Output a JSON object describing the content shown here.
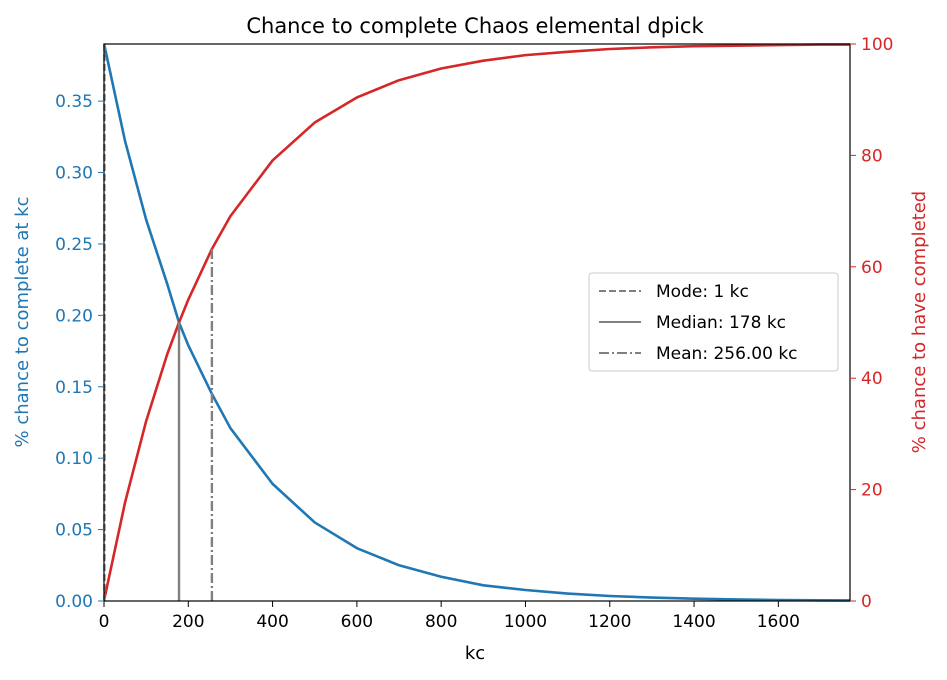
{
  "chart_data": {
    "type": "line",
    "title": "Chance to complete Chaos elemental dpick",
    "xlabel": "kc",
    "ylabel_left": "% chance to complete at kc",
    "ylabel_right": "% chance to have completed",
    "xlim": [
      0,
      1770
    ],
    "ylim_left": [
      0,
      0.39
    ],
    "ylim_right": [
      0,
      100
    ],
    "x_ticks": [
      "0",
      "200",
      "400",
      "600",
      "800",
      "1000",
      "1200",
      "1400",
      "1600"
    ],
    "y_left_ticks": [
      "0.00",
      "0.05",
      "0.10",
      "0.15",
      "0.20",
      "0.25",
      "0.30",
      "0.35"
    ],
    "y_right_ticks": [
      "0",
      "20",
      "40",
      "60",
      "80",
      "100"
    ],
    "colors": {
      "left": "#1f77b4",
      "right": "#d62728",
      "markers": "#808080"
    },
    "series": [
      {
        "axis": "left",
        "x": [
          1,
          50,
          100,
          150,
          178,
          200,
          256,
          300,
          400,
          500,
          600,
          700,
          800,
          900,
          1000,
          1100,
          1200,
          1300,
          1400,
          1500,
          1600,
          1700,
          1770
        ],
        "values": [
          0.389,
          0.322,
          0.267,
          0.222,
          0.195,
          0.179,
          0.145,
          0.121,
          0.082,
          0.055,
          0.037,
          0.025,
          0.017,
          0.011,
          0.0077,
          0.0052,
          0.0035,
          0.0024,
          0.0016,
          0.0011,
          0.0007,
          0.0005,
          0.0004
        ]
      },
      {
        "axis": "right",
        "x": [
          1,
          50,
          100,
          150,
          178,
          200,
          256,
          300,
          400,
          500,
          600,
          700,
          800,
          900,
          1000,
          1100,
          1200,
          1300,
          1400,
          1500,
          1600,
          1700,
          1770
        ],
        "values": [
          0.4,
          17.7,
          32.3,
          44.3,
          50.0,
          54.1,
          63.2,
          69.1,
          79.1,
          85.9,
          90.4,
          93.5,
          95.6,
          97.0,
          98.0,
          98.6,
          99.1,
          99.4,
          99.6,
          99.7,
          99.8,
          99.9,
          99.9
        ]
      }
    ],
    "vlines": [
      {
        "label": "Mode: 1 kc",
        "x": 1,
        "style": "dashed"
      },
      {
        "label": "Median: 178 kc",
        "x": 178,
        "style": "solid"
      },
      {
        "label": "Mean: 256.00 kc",
        "x": 256,
        "style": "dashdot"
      }
    ],
    "legend_position": "center-right"
  }
}
